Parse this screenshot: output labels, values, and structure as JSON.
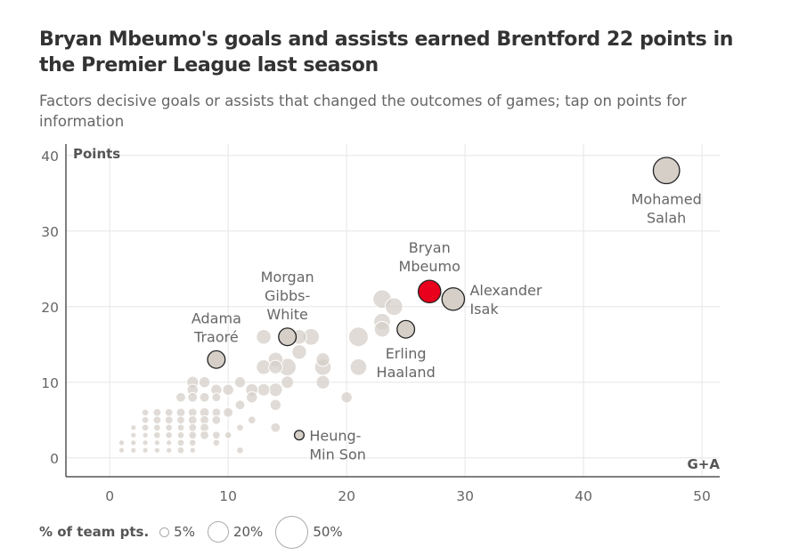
{
  "title": "Bryan Mbeumo's goals and assists earned Brentford 22 points in the Premier League last season",
  "subtitle": "Factors decisive goals or assists that changed the outcomes of games; tap on points for information",
  "legend": {
    "label": "% of team pts.",
    "items": [
      {
        "label": "5%",
        "value": 5
      },
      {
        "label": "20%",
        "value": 20
      },
      {
        "label": "50%",
        "value": 50
      }
    ]
  },
  "colors": {
    "bubble": "#d5cfc8",
    "highlight": "#e8001c",
    "grid": "#e6e6e6",
    "axis": "#555555"
  },
  "chart_data": {
    "type": "scatter",
    "title": "Bryan Mbeumo's goals and assists earned Brentford 22 points in the Premier League last season",
    "xlabel": "G+A",
    "ylabel": "Points",
    "xlim": [
      -3.7,
      51.5
    ],
    "ylim": [
      -2.5,
      41.5
    ],
    "x_ticks": [
      0,
      10,
      20,
      30,
      40,
      50
    ],
    "y_ticks": [
      0,
      10,
      20,
      30,
      40
    ],
    "grid": true,
    "labeled_points": [
      {
        "name": "Mohamed Salah",
        "x": 47,
        "y": 38,
        "pct": 45,
        "label": [
          "Mohamed",
          "Salah"
        ],
        "label_pos": "below",
        "highlight": false
      },
      {
        "name": "Bryan Mbeumo",
        "x": 27,
        "y": 22,
        "pct": 33,
        "label": [
          "Bryan",
          "Mbeumo"
        ],
        "label_pos": "above",
        "highlight": true
      },
      {
        "name": "Alexander Isak",
        "x": 29,
        "y": 21,
        "pct": 33,
        "label": [
          "Alexander",
          "Isak"
        ],
        "label_pos": "right",
        "highlight": false
      },
      {
        "name": "Erling Haaland",
        "x": 25,
        "y": 17,
        "pct": 20,
        "label": [
          "Erling",
          "Haaland"
        ],
        "label_pos": "below",
        "highlight": false
      },
      {
        "name": "Morgan Gibbs-White",
        "x": 15,
        "y": 16,
        "pct": 20,
        "label": [
          "Morgan",
          "Gibbs-",
          "White"
        ],
        "label_pos": "above",
        "highlight": false
      },
      {
        "name": "Adama Traoré",
        "x": 9,
        "y": 13,
        "pct": 20,
        "label": [
          "Adama",
          "Traoré"
        ],
        "label_pos": "above",
        "highlight": false
      },
      {
        "name": "Heung-Min Son",
        "x": 16,
        "y": 3,
        "pct": 6,
        "label": [
          "Heung-",
          "Min Son"
        ],
        "label_pos": "right",
        "highlight": false
      }
    ],
    "points": [
      {
        "x": 23,
        "y": 21,
        "pct": 22
      },
      {
        "x": 24,
        "y": 20,
        "pct": 20
      },
      {
        "x": 23,
        "y": 18,
        "pct": 18
      },
      {
        "x": 23,
        "y": 17,
        "pct": 16
      },
      {
        "x": 21,
        "y": 16,
        "pct": 25
      },
      {
        "x": 21,
        "y": 12,
        "pct": 18
      },
      {
        "x": 20,
        "y": 8,
        "pct": 8
      },
      {
        "x": 13,
        "y": 16,
        "pct": 14
      },
      {
        "x": 16,
        "y": 16,
        "pct": 14
      },
      {
        "x": 17,
        "y": 16,
        "pct": 18
      },
      {
        "x": 16,
        "y": 14,
        "pct": 14
      },
      {
        "x": 14,
        "y": 13,
        "pct": 14
      },
      {
        "x": 15,
        "y": 12,
        "pct": 20
      },
      {
        "x": 13,
        "y": 12,
        "pct": 14
      },
      {
        "x": 14,
        "y": 12,
        "pct": 12
      },
      {
        "x": 18,
        "y": 13,
        "pct": 12
      },
      {
        "x": 18,
        "y": 12,
        "pct": 18
      },
      {
        "x": 18,
        "y": 10,
        "pct": 12
      },
      {
        "x": 15,
        "y": 10,
        "pct": 10
      },
      {
        "x": 13,
        "y": 9,
        "pct": 10
      },
      {
        "x": 14,
        "y": 9,
        "pct": 12
      },
      {
        "x": 12,
        "y": 9,
        "pct": 10
      },
      {
        "x": 11,
        "y": 10,
        "pct": 8
      },
      {
        "x": 12,
        "y": 8,
        "pct": 8
      },
      {
        "x": 14,
        "y": 7,
        "pct": 8
      },
      {
        "x": 14,
        "y": 4,
        "pct": 6
      },
      {
        "x": 11,
        "y": 7,
        "pct": 6
      },
      {
        "x": 12,
        "y": 5,
        "pct": 4
      },
      {
        "x": 11,
        "y": 4,
        "pct": 3
      },
      {
        "x": 10,
        "y": 3,
        "pct": 3
      },
      {
        "x": 11,
        "y": 1,
        "pct": 3
      },
      {
        "x": 9,
        "y": 9,
        "pct": 8
      },
      {
        "x": 10,
        "y": 9,
        "pct": 8
      },
      {
        "x": 8,
        "y": 10,
        "pct": 8
      },
      {
        "x": 7,
        "y": 10,
        "pct": 9
      },
      {
        "x": 7,
        "y": 9,
        "pct": 8
      },
      {
        "x": 7,
        "y": 8,
        "pct": 6
      },
      {
        "x": 6,
        "y": 8,
        "pct": 6
      },
      {
        "x": 8,
        "y": 8,
        "pct": 6
      },
      {
        "x": 9,
        "y": 8,
        "pct": 5
      },
      {
        "x": 10,
        "y": 6,
        "pct": 6
      },
      {
        "x": 8,
        "y": 6,
        "pct": 6
      },
      {
        "x": 9,
        "y": 6,
        "pct": 5
      },
      {
        "x": 7,
        "y": 6,
        "pct": 5
      },
      {
        "x": 6,
        "y": 6,
        "pct": 5
      },
      {
        "x": 5,
        "y": 6,
        "pct": 4
      },
      {
        "x": 4,
        "y": 6,
        "pct": 4
      },
      {
        "x": 3,
        "y": 6,
        "pct": 3
      },
      {
        "x": 8,
        "y": 5,
        "pct": 5
      },
      {
        "x": 9,
        "y": 5,
        "pct": 5
      },
      {
        "x": 7,
        "y": 5,
        "pct": 5
      },
      {
        "x": 6,
        "y": 5,
        "pct": 4
      },
      {
        "x": 5,
        "y": 5,
        "pct": 4
      },
      {
        "x": 4,
        "y": 5,
        "pct": 4
      },
      {
        "x": 3,
        "y": 5,
        "pct": 3
      },
      {
        "x": 8,
        "y": 4,
        "pct": 5
      },
      {
        "x": 7,
        "y": 4,
        "pct": 4
      },
      {
        "x": 6,
        "y": 4,
        "pct": 3
      },
      {
        "x": 5,
        "y": 4,
        "pct": 3
      },
      {
        "x": 4,
        "y": 4,
        "pct": 3
      },
      {
        "x": 3,
        "y": 4,
        "pct": 3
      },
      {
        "x": 2,
        "y": 4,
        "pct": 2
      },
      {
        "x": 8,
        "y": 3,
        "pct": 5
      },
      {
        "x": 9,
        "y": 3,
        "pct": 4
      },
      {
        "x": 7,
        "y": 3,
        "pct": 4
      },
      {
        "x": 6,
        "y": 3,
        "pct": 3
      },
      {
        "x": 5,
        "y": 3,
        "pct": 3
      },
      {
        "x": 4,
        "y": 3,
        "pct": 3
      },
      {
        "x": 3,
        "y": 3,
        "pct": 2
      },
      {
        "x": 2,
        "y": 3,
        "pct": 2
      },
      {
        "x": 9,
        "y": 2,
        "pct": 3
      },
      {
        "x": 7,
        "y": 2,
        "pct": 3
      },
      {
        "x": 6,
        "y": 2,
        "pct": 3
      },
      {
        "x": 5,
        "y": 2,
        "pct": 2
      },
      {
        "x": 4,
        "y": 2,
        "pct": 2
      },
      {
        "x": 3,
        "y": 2,
        "pct": 2
      },
      {
        "x": 2,
        "y": 2,
        "pct": 2
      },
      {
        "x": 1,
        "y": 2,
        "pct": 2
      },
      {
        "x": 7,
        "y": 1,
        "pct": 2
      },
      {
        "x": 6,
        "y": 1,
        "pct": 3
      },
      {
        "x": 5,
        "y": 1,
        "pct": 2
      },
      {
        "x": 4,
        "y": 1,
        "pct": 2
      },
      {
        "x": 3,
        "y": 1,
        "pct": 2
      },
      {
        "x": 2,
        "y": 1,
        "pct": 2
      },
      {
        "x": 1,
        "y": 1,
        "pct": 2
      }
    ]
  }
}
